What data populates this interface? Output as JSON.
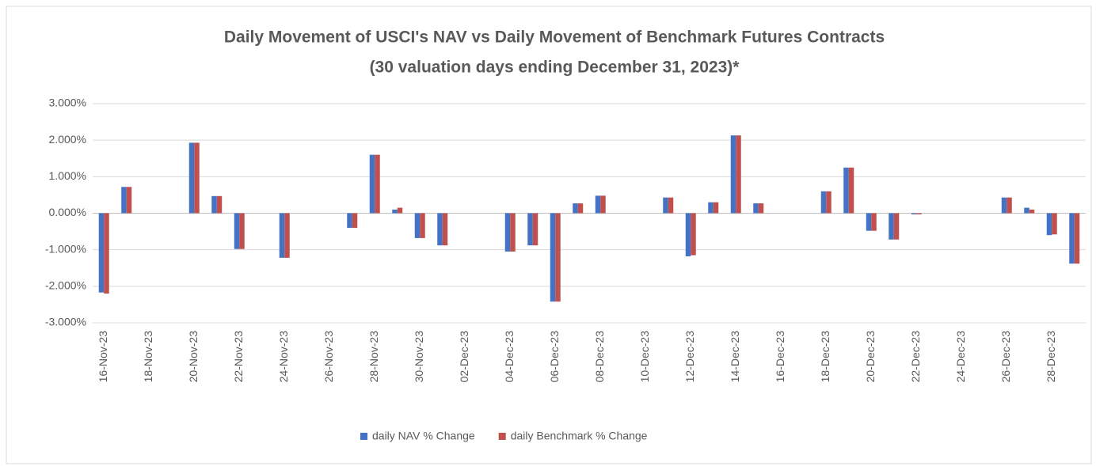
{
  "chart_data": {
    "type": "bar",
    "title": "Daily Movement of USCI's NAV vs Daily Movement of Benchmark Futures Contracts",
    "subtitle": "(30 valuation days ending December 31, 2023)*",
    "categories": [
      "16-Nov-23",
      null,
      "18-Nov-23",
      null,
      "20-Nov-23",
      null,
      "22-Nov-23",
      null,
      "24-Nov-23",
      null,
      "26-Nov-23",
      null,
      "28-Nov-23",
      null,
      "30-Nov-23",
      null,
      "02-Dec-23",
      null,
      "04-Dec-23",
      null,
      "06-Dec-23",
      null,
      "08-Dec-23",
      null,
      "10-Dec-23",
      null,
      "12-Dec-23",
      null,
      "14-Dec-23",
      null,
      "16-Dec-23",
      null,
      "18-Dec-23",
      null,
      "20-Dec-23",
      null,
      "22-Dec-23",
      null,
      "24-Dec-23",
      null,
      "26-Dec-23",
      null,
      "28-Dec-23",
      null
    ],
    "series": [
      {
        "name": "daily NAV % Change",
        "color": "#4472c4",
        "values": [
          -2.17,
          0.72,
          null,
          null,
          1.93,
          0.47,
          -0.98,
          null,
          -1.22,
          null,
          null,
          -0.4,
          1.6,
          0.1,
          -0.68,
          -0.88,
          null,
          null,
          -1.05,
          -0.88,
          -2.42,
          0.27,
          0.48,
          null,
          null,
          0.43,
          -1.18,
          0.3,
          2.13,
          0.27,
          null,
          null,
          0.6,
          1.25,
          -0.48,
          -0.72,
          -0.03,
          null,
          null,
          null,
          0.43,
          0.15,
          -0.6,
          -1.38
        ]
      },
      {
        "name": "daily Benchmark % Change",
        "color": "#c0504d",
        "values": [
          -2.2,
          0.72,
          null,
          null,
          1.93,
          0.47,
          -0.98,
          null,
          -1.22,
          null,
          null,
          -0.4,
          1.6,
          0.15,
          -0.68,
          -0.88,
          null,
          null,
          -1.05,
          -0.88,
          -2.42,
          0.27,
          0.48,
          null,
          null,
          0.43,
          -1.15,
          0.3,
          2.13,
          0.27,
          null,
          null,
          0.6,
          1.25,
          -0.48,
          -0.72,
          -0.03,
          null,
          null,
          null,
          0.43,
          0.1,
          -0.58,
          -1.38
        ]
      }
    ],
    "ylim": [
      -3,
      3
    ],
    "yticks": [
      {
        "value": -3,
        "label": "-3.000%"
      },
      {
        "value": -2,
        "label": "-2.000%"
      },
      {
        "value": -1,
        "label": "-1.000%"
      },
      {
        "value": 0,
        "label": "0.000%"
      },
      {
        "value": 1,
        "label": "1.000%"
      },
      {
        "value": 2,
        "label": "2.000%"
      },
      {
        "value": 3,
        "label": "3.000%"
      }
    ],
    "grid": true,
    "legend": "bottom"
  }
}
